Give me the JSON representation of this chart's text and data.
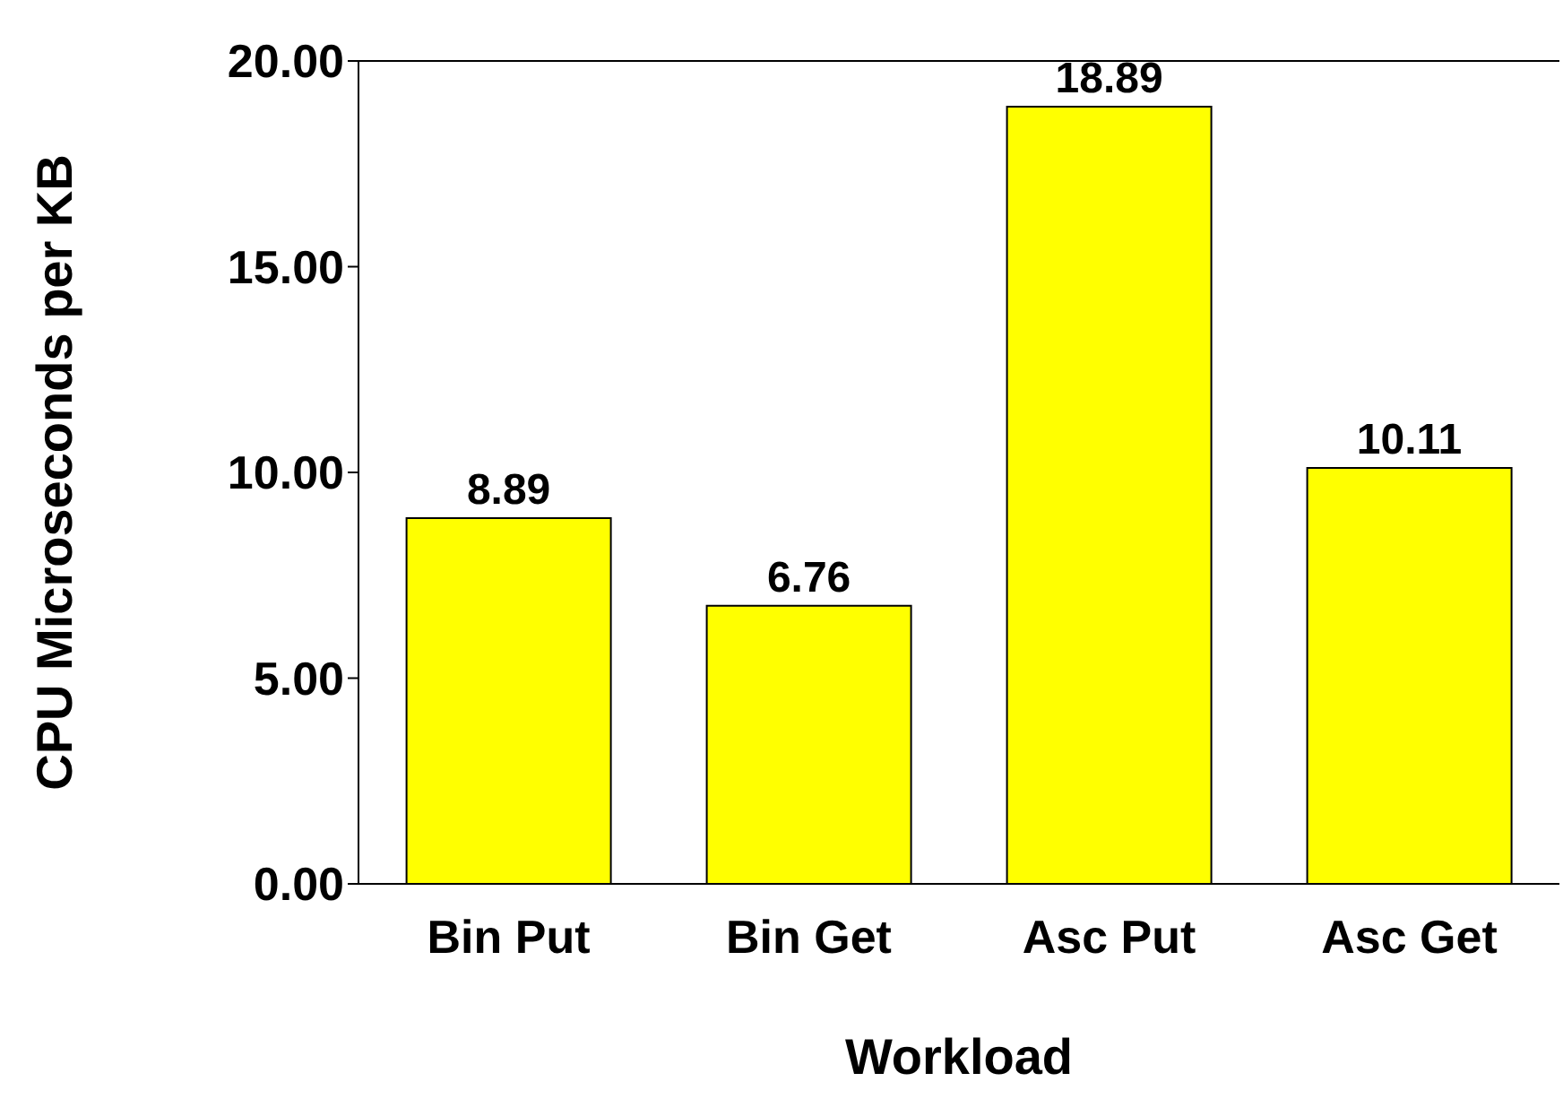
{
  "chart_data": {
    "type": "bar",
    "xlabel": "Workload",
    "ylabel": "CPU Microseconds per KB",
    "categories": [
      "Bin Put",
      "Bin Get",
      "Asc Put",
      "Asc Get"
    ],
    "values": [
      8.89,
      6.76,
      18.89,
      10.11
    ],
    "color": "#ffff00",
    "ylim": [
      0,
      20
    ],
    "yticks": [
      {
        "value": 0,
        "label": "0.00"
      },
      {
        "value": 5,
        "label": "5.00"
      },
      {
        "value": 10,
        "label": "10.00"
      },
      {
        "value": 15,
        "label": "15.00"
      },
      {
        "value": 20,
        "label": "20.00"
      }
    ],
    "data_labels": true,
    "grid": false
  }
}
